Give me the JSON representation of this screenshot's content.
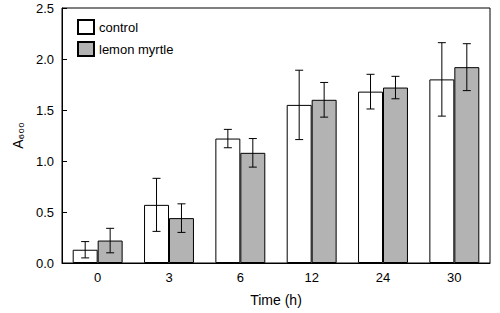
{
  "chart_data": {
    "type": "bar",
    "x_label": "Time (h)",
    "y_label": "A₆₀₀",
    "categories": [
      0,
      3,
      6,
      12,
      24,
      30
    ],
    "series": [
      {
        "name": "control",
        "color": "#ffffff",
        "values": [
          0.13,
          0.57,
          1.22,
          1.55,
          1.68,
          1.8
        ],
        "errors": [
          0.08,
          0.26,
          0.09,
          0.34,
          0.17,
          0.36
        ]
      },
      {
        "name": "lemon myrtle",
        "color": "#b3b3b3",
        "values": [
          0.22,
          0.44,
          1.08,
          1.6,
          1.72,
          1.92
        ],
        "errors": [
          0.12,
          0.14,
          0.14,
          0.17,
          0.11,
          0.23
        ]
      }
    ],
    "ylim": [
      0,
      2.5
    ],
    "yticks": [
      {
        "value": 0,
        "label": "0.0"
      },
      0.5,
      {
        "value": 1,
        "label": "1.0"
      },
      1.5,
      {
        "value": 2,
        "label": "2.0"
      },
      2.5
    ],
    "legend": "upper left",
    "grid": false
  }
}
